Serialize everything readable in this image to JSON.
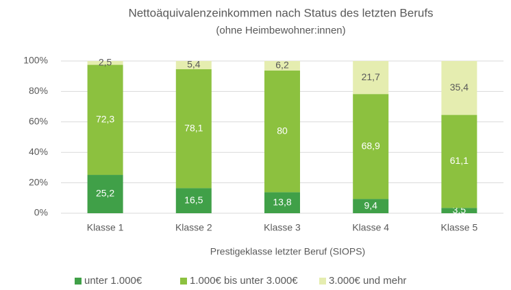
{
  "chart_data": {
    "type": "stacked_bar",
    "title": "Nettoäquivalenzeinkommen nach Status des letzten Berufs",
    "subtitle": "(ohne Heimbewohner:innen)",
    "x_label": "Prestigeklasse letzter Beruf (SIOPS)",
    "categories": [
      "Klasse 1",
      "Klasse 2",
      "Klasse 3",
      "Klasse 4",
      "Klasse 5"
    ],
    "series": [
      {
        "name": "unter 1.000€",
        "color": "#40a048",
        "values": [
          25.2,
          16.5,
          13.8,
          9.4,
          3.5
        ],
        "value_labels": [
          "25,2",
          "16,5",
          "13,8",
          "9,4",
          "3,5"
        ]
      },
      {
        "name": "1.000€ bis unter 3.000€",
        "color": "#8cc13f",
        "values": [
          72.3,
          78.1,
          80,
          68.9,
          61.1
        ],
        "value_labels": [
          "72,3",
          "78,1",
          "80",
          "68,9",
          "61,1"
        ]
      },
      {
        "name": "3.000€ und mehr",
        "color": "#e5edb0",
        "values": [
          2.5,
          5.4,
          6.2,
          21.7,
          35.4
        ],
        "value_labels": [
          "2,5",
          "5,4",
          "6,2",
          "21,7",
          "35,4"
        ]
      }
    ],
    "ylim": [
      0,
      100
    ],
    "yticks": [
      {
        "value": 0,
        "label": "0%"
      },
      {
        "value": 20,
        "label": "20%"
      },
      {
        "value": 40,
        "label": "40%"
      },
      {
        "value": 60,
        "label": "60%"
      },
      {
        "value": 80,
        "label": "80%"
      },
      {
        "value": 100,
        "label": "100%"
      }
    ],
    "grid": true,
    "legend": "bottom"
  }
}
